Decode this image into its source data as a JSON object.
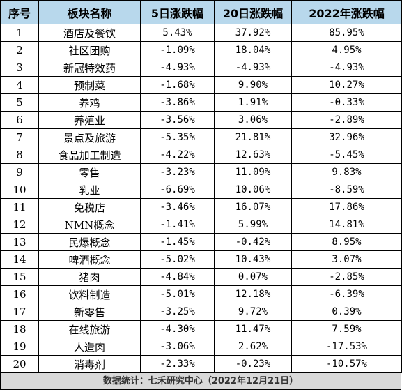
{
  "colors": {
    "header_bg": "#b8d8ec",
    "footer_bg": "#d9d9d9",
    "border": "#000000"
  },
  "table": {
    "headers": [
      "序号",
      "板块名称",
      "5日涨跌幅",
      "20日涨跌幅",
      "2022年涨跌幅"
    ],
    "rows": [
      [
        "1",
        "酒店及餐饮",
        "5.43%",
        "37.92%",
        "85.95%"
      ],
      [
        "2",
        "社区团购",
        "-1.09%",
        "18.04%",
        "4.95%"
      ],
      [
        "3",
        "新冠特效药",
        "-4.93%",
        "-4.93%",
        "-4.93%"
      ],
      [
        "4",
        "预制菜",
        "-1.68%",
        "9.90%",
        "10.27%"
      ],
      [
        "5",
        "养鸡",
        "-3.86%",
        "1.91%",
        "-0.33%"
      ],
      [
        "6",
        "养殖业",
        "-3.56%",
        "3.06%",
        "-2.89%"
      ],
      [
        "7",
        "景点及旅游",
        "-5.35%",
        "21.81%",
        "32.96%"
      ],
      [
        "8",
        "食品加工制造",
        "-4.22%",
        "12.63%",
        "-5.45%"
      ],
      [
        "9",
        "零售",
        "-3.23%",
        "11.09%",
        "9.83%"
      ],
      [
        "10",
        "乳业",
        "-6.69%",
        "10.06%",
        "-8.59%"
      ],
      [
        "11",
        "免税店",
        "-3.46%",
        "16.07%",
        "17.86%"
      ],
      [
        "12",
        "NMN概念",
        "-1.41%",
        "5.99%",
        "14.81%"
      ],
      [
        "13",
        "民爆概念",
        "-1.45%",
        "-0.42%",
        "8.95%"
      ],
      [
        "14",
        "啤酒概念",
        "-5.02%",
        "10.43%",
        "3.07%"
      ],
      [
        "15",
        "猪肉",
        "-4.84%",
        "0.07%",
        "-2.85%"
      ],
      [
        "16",
        "饮料制造",
        "-5.01%",
        "12.18%",
        "-6.39%"
      ],
      [
        "17",
        "新零售",
        "-3.25%",
        "9.72%",
        "0.39%"
      ],
      [
        "18",
        "在线旅游",
        "-4.30%",
        "11.47%",
        "7.59%"
      ],
      [
        "19",
        "人造肉",
        "-3.06%",
        "2.62%",
        "-17.53%"
      ],
      [
        "20",
        "消毒剂",
        "-2.33%",
        "-0.23%",
        "-10.57%"
      ]
    ]
  },
  "footer": {
    "text": "数据统计：七禾研究中心（2022年12月21日）"
  }
}
